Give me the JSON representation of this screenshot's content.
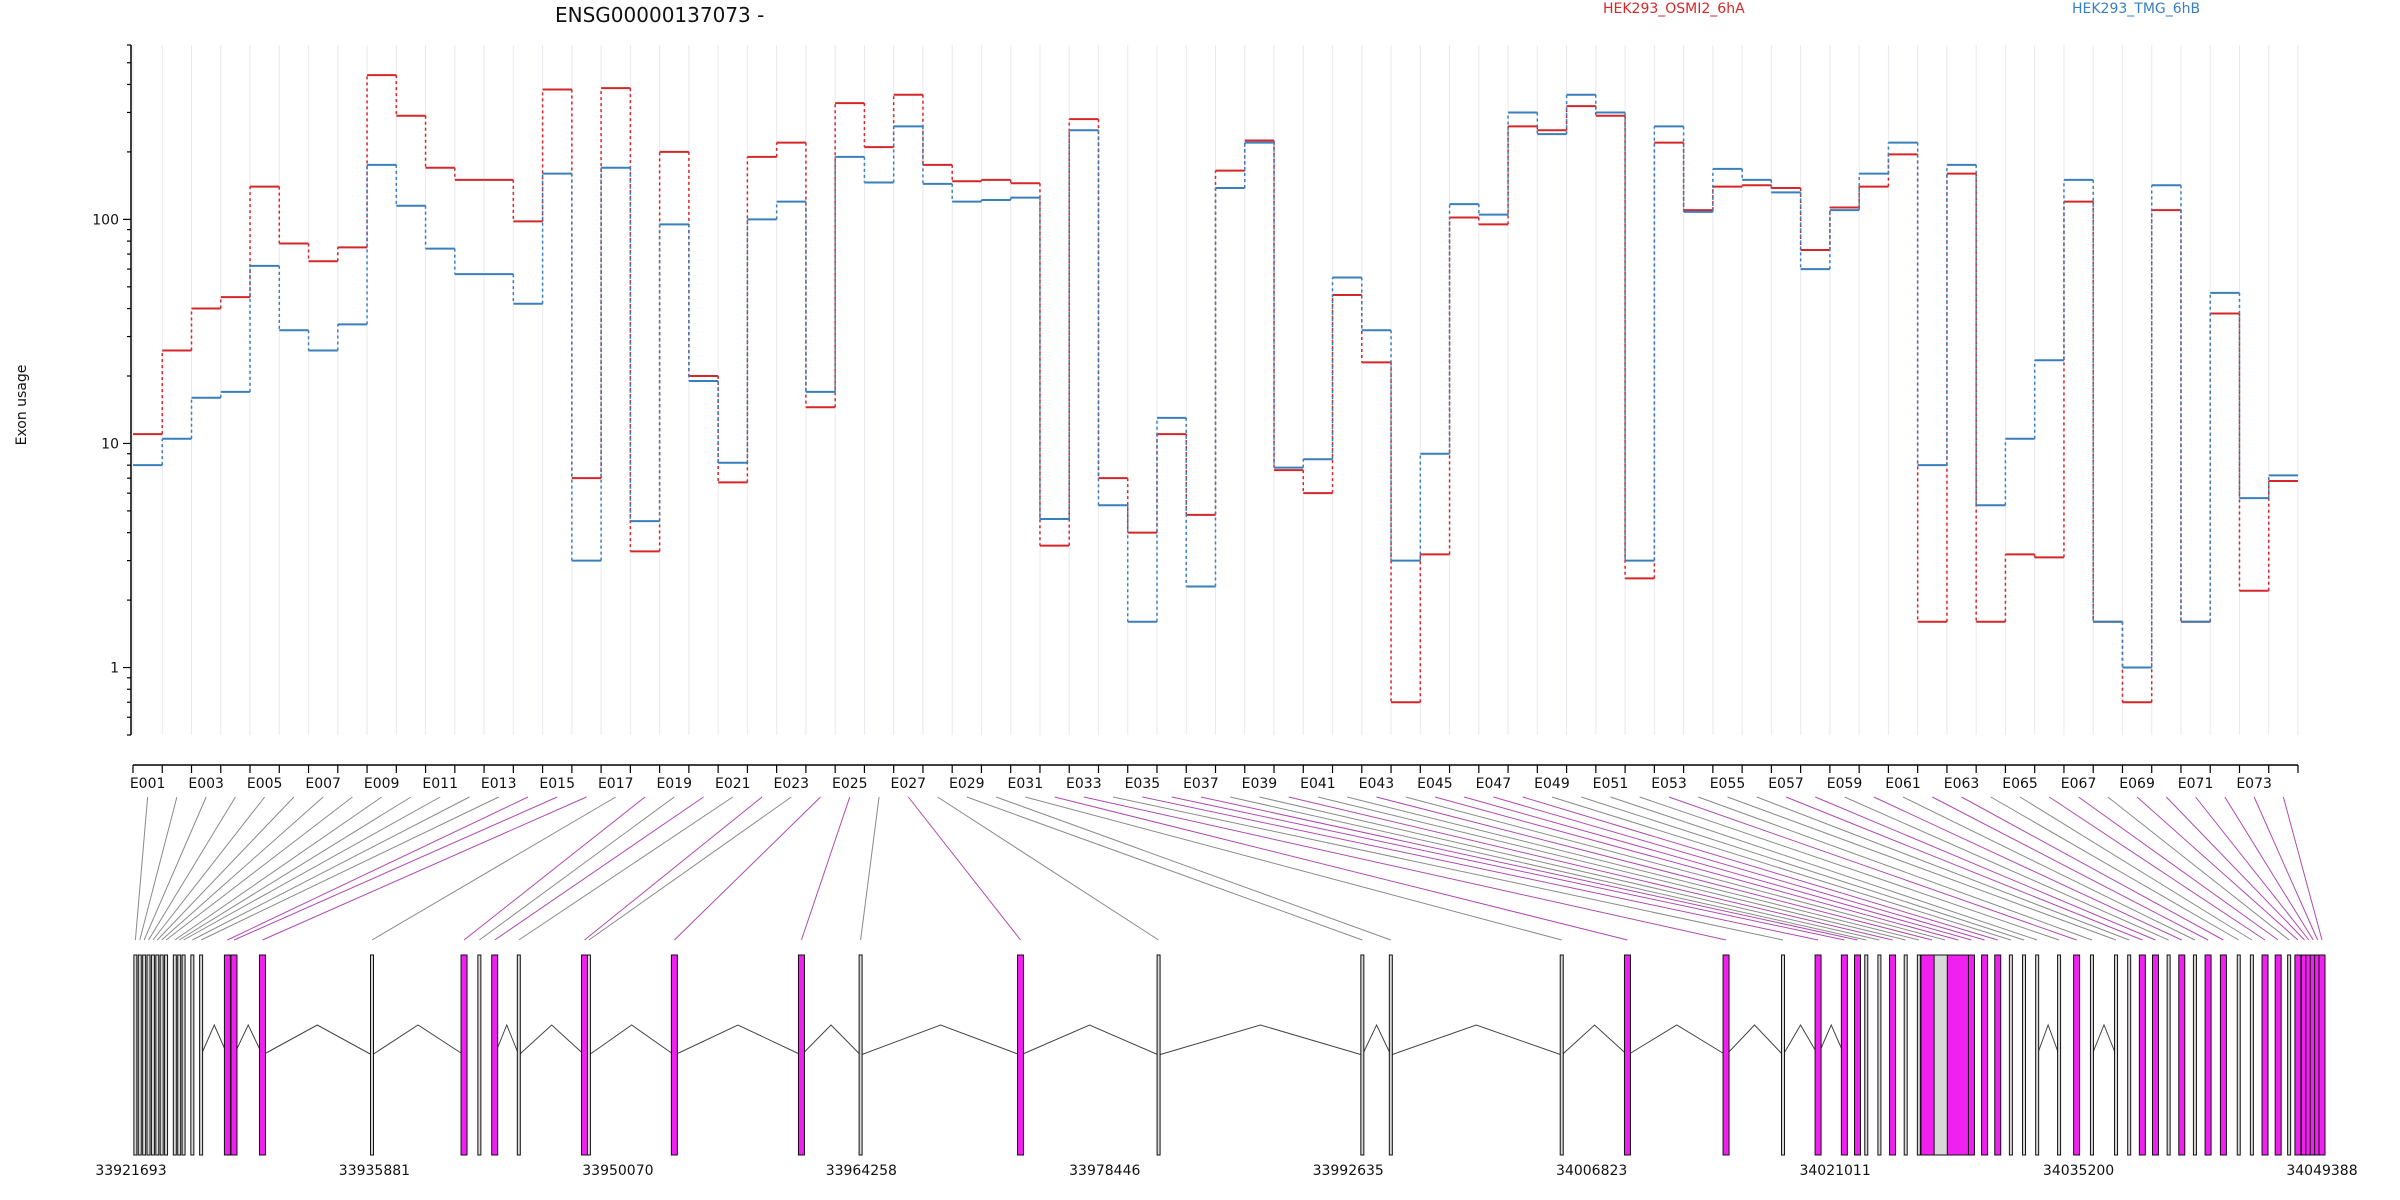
{
  "chart_data": {
    "type": "line",
    "title": "ENSG00000137073 -",
    "ylabel": "Exon usage",
    "yscale": "log",
    "ylim": [
      0.5,
      600
    ],
    "yticks": [
      1,
      10,
      100
    ],
    "ytick_labels": [
      "1",
      "10",
      "100"
    ],
    "grid": "vertical, light",
    "legend_position": "top",
    "colors": {
      "HEK293_OSMI2_6hA": "#d62728",
      "HEK293_TMG_6hB": "#3a7fbd",
      "highlight": "#f021f0"
    },
    "categories": [
      "E001",
      "E002",
      "E003",
      "E004",
      "E005",
      "E006",
      "E007",
      "E008",
      "E009",
      "E010",
      "E011",
      "E012",
      "E013",
      "E014",
      "E015",
      "E016",
      "E017",
      "E018",
      "E019",
      "E020",
      "E021",
      "E022",
      "E023",
      "E024",
      "E025",
      "E026",
      "E027",
      "E028",
      "E029",
      "E030",
      "E031",
      "E032",
      "E033",
      "E034",
      "E035",
      "E036",
      "E037",
      "E038",
      "E039",
      "E040",
      "E041",
      "E042",
      "E043",
      "E044",
      "E045",
      "E046",
      "E047",
      "E048",
      "E049",
      "E050",
      "E051",
      "E052",
      "E053",
      "E054",
      "E055",
      "E056",
      "E057",
      "E058",
      "E059",
      "E060",
      "E061",
      "E062",
      "E063",
      "E064",
      "E065",
      "E066",
      "E067",
      "E068",
      "E069",
      "E070",
      "E071",
      "E072",
      "E073",
      "E074"
    ],
    "xtick_labels": [
      "E001",
      "E003",
      "E005",
      "E007",
      "E009",
      "E011",
      "E013",
      "E015",
      "E017",
      "E019",
      "E021",
      "E023",
      "E025",
      "E027",
      "E029",
      "E031",
      "E033",
      "E035",
      "E037",
      "E039",
      "E041",
      "E043",
      "E045",
      "E047",
      "E049",
      "E051",
      "E053",
      "E055",
      "E057",
      "E059",
      "E061",
      "E063",
      "E065",
      "E067",
      "E069",
      "E071",
      "E073"
    ],
    "series": [
      {
        "name": "HEK293_OSMI2_6hA",
        "values": [
          11,
          26,
          40,
          45,
          140,
          78,
          65,
          75,
          440,
          290,
          170,
          150,
          150,
          98,
          380,
          7,
          385,
          3.3,
          200,
          20,
          6.7,
          190,
          220,
          14.5,
          330,
          210,
          360,
          175,
          148,
          150,
          145,
          3.5,
          280,
          7,
          4,
          11,
          4.8,
          165,
          225,
          7.6,
          6,
          46,
          23,
          0.7,
          3.2,
          102,
          95,
          260,
          250,
          320,
          290,
          2.5,
          220,
          110,
          140,
          142,
          138,
          73,
          113,
          140,
          195,
          1.6,
          160,
          1.6,
          3.2,
          3.1,
          120,
          1.6,
          0.7,
          110,
          1.6,
          38,
          2.2,
          6.8
        ]
      },
      {
        "name": "HEK293_TMG_6hB",
        "values": [
          8,
          10.5,
          16,
          17,
          62,
          32,
          26,
          34,
          175,
          115,
          74,
          57,
          57,
          42,
          160,
          3,
          170,
          4.5,
          95,
          19,
          8.2,
          100,
          120,
          17,
          190,
          146,
          260,
          144,
          120,
          122,
          125,
          4.6,
          250,
          5.3,
          1.6,
          13,
          2.3,
          138,
          220,
          7.8,
          8.5,
          55,
          32,
          3,
          9,
          117,
          105,
          300,
          240,
          360,
          300,
          3,
          260,
          108,
          168,
          150,
          132,
          60,
          110,
          160,
          220,
          8,
          175,
          5.3,
          10.5,
          23.5,
          150,
          1.6,
          1,
          142,
          1.6,
          47,
          5.7,
          7.2
        ]
      }
    ],
    "gene_structure": {
      "coordinate_labels": [
        "33921693",
        "33935881",
        "33950070",
        "33964258",
        "33978446",
        "33992635",
        "34006823",
        "34021011",
        "34035200",
        "34049388"
      ],
      "highlighted_exons": [
        "E014",
        "E015",
        "E016",
        "E018",
        "E020",
        "E022",
        "E024",
        "E025",
        "E027",
        "E032",
        "E033",
        "E035",
        "E036",
        "E037",
        "E040",
        "E043",
        "E045",
        "E046",
        "E047",
        "E048",
        "E053",
        "E057",
        "E058",
        "E060",
        "E062",
        "E063",
        "E066",
        "E067",
        "E069",
        "E070",
        "E071",
        "E072",
        "E073",
        "E074"
      ]
    }
  }
}
